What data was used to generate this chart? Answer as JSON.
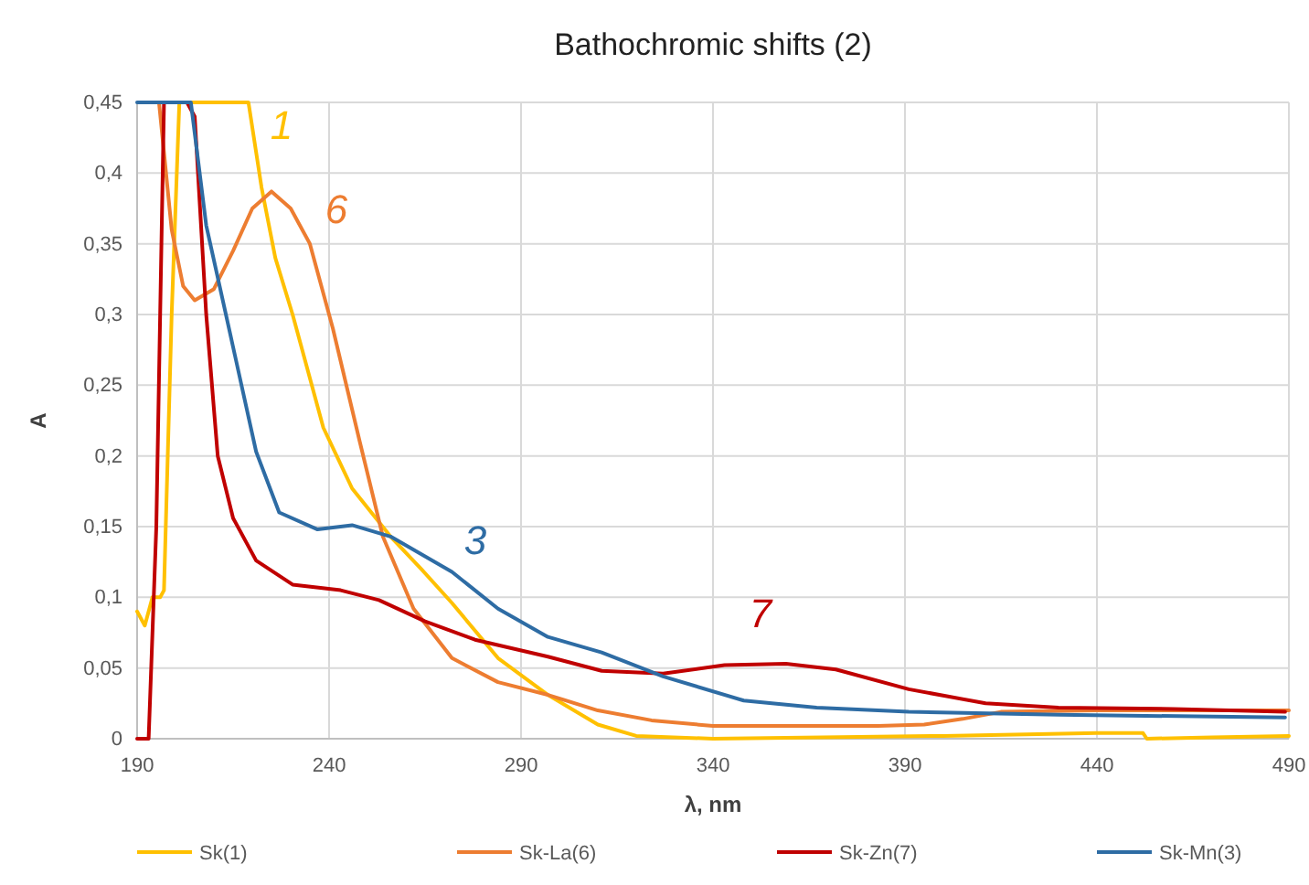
{
  "chart_data": {
    "type": "line",
    "title": "Bathochromic shifts (2)",
    "xlabel": "λ, nm",
    "ylabel": "A",
    "xlim": [
      190,
      490
    ],
    "xticks": [
      190,
      240,
      290,
      340,
      390,
      440,
      490
    ],
    "ylim": [
      0,
      0.45
    ],
    "yticks": [
      {
        "value": 0,
        "label": "0"
      },
      {
        "value": 0.05,
        "label": "0,05"
      },
      {
        "value": 0.1,
        "label": "0,1"
      },
      {
        "value": 0.15,
        "label": "0,15"
      },
      {
        "value": 0.2,
        "label": "0,2"
      },
      {
        "value": 0.25,
        "label": "0,25"
      },
      {
        "value": 0.3,
        "label": "0,3"
      },
      {
        "value": 0.35,
        "label": "0,35"
      },
      {
        "value": 0.4,
        "label": "0,4"
      },
      {
        "value": 0.45,
        "label": "0,45"
      }
    ],
    "grid": true,
    "legend": "bottom",
    "marker": "none",
    "line_style": "solid",
    "series": [
      {
        "name": "Sk(1)",
        "color": "#ffc000",
        "x": [
          190,
          192,
          194,
          196,
          197,
          199,
          201,
          205,
          210,
          215,
          219,
          222.4,
          226,
          230.5,
          238.5,
          246,
          256,
          264,
          272,
          284,
          297,
          310,
          320,
          340,
          400,
          440,
          452,
          453,
          470,
          490
        ],
        "values": [
          0.09,
          0.08,
          0.1,
          0.1,
          0.105,
          0.3,
          0.45,
          0.45,
          0.45,
          0.45,
          0.45,
          0.39,
          0.34,
          0.3,
          0.22,
          0.177,
          0.143,
          0.12,
          0.096,
          0.057,
          0.031,
          0.01,
          0.002,
          0,
          0.002,
          0.004,
          0.004,
          0,
          0.001,
          0.002
        ]
      },
      {
        "name": "Sk-La(6)",
        "color": "#ed7d31",
        "x": [
          194,
          195.7,
          199,
          202,
          205,
          210,
          215,
          220,
          225,
          230,
          235,
          241,
          248,
          254,
          262,
          272,
          284,
          297,
          310,
          324,
          340,
          383,
          395,
          405,
          415,
          440,
          490
        ],
        "values": [
          0.45,
          0.45,
          0.36,
          0.32,
          0.31,
          0.318,
          0.345,
          0.375,
          0.387,
          0.375,
          0.35,
          0.29,
          0.21,
          0.143,
          0.092,
          0.057,
          0.04,
          0.031,
          0.02,
          0.013,
          0.009,
          0.009,
          0.01,
          0.014,
          0.019,
          0.02,
          0.02
        ]
      },
      {
        "name": "Sk-Zn(7)",
        "color": "#c00000",
        "x": [
          190,
          193,
          195,
          197,
          203,
          205,
          208,
          211,
          215,
          221,
          230.5,
          243,
          253,
          265,
          278,
          297,
          311,
          327,
          343,
          359,
          372,
          391,
          411,
          430,
          460,
          489
        ],
        "values": [
          0,
          0,
          0.15,
          0.45,
          0.45,
          0.44,
          0.3,
          0.2,
          0.156,
          0.126,
          0.109,
          0.105,
          0.098,
          0.083,
          0.07,
          0.058,
          0.048,
          0.046,
          0.052,
          0.053,
          0.049,
          0.035,
          0.025,
          0.022,
          0.021,
          0.019
        ]
      },
      {
        "name": "Sk-Mn(3)",
        "color": "#2e6ca4",
        "x": [
          190,
          204,
          208,
          215,
          221,
          227,
          237,
          246,
          256,
          272,
          284,
          297,
          311,
          327,
          348,
          367,
          391,
          430,
          489
        ],
        "values": [
          0.45,
          0.45,
          0.363,
          0.277,
          0.203,
          0.16,
          0.148,
          0.151,
          0.143,
          0.118,
          0.092,
          0.072,
          0.061,
          0.044,
          0.027,
          0.022,
          0.019,
          0.017,
          0.015
        ]
      }
    ],
    "annotations": [
      "1",
      "6",
      "7",
      "3"
    ]
  }
}
